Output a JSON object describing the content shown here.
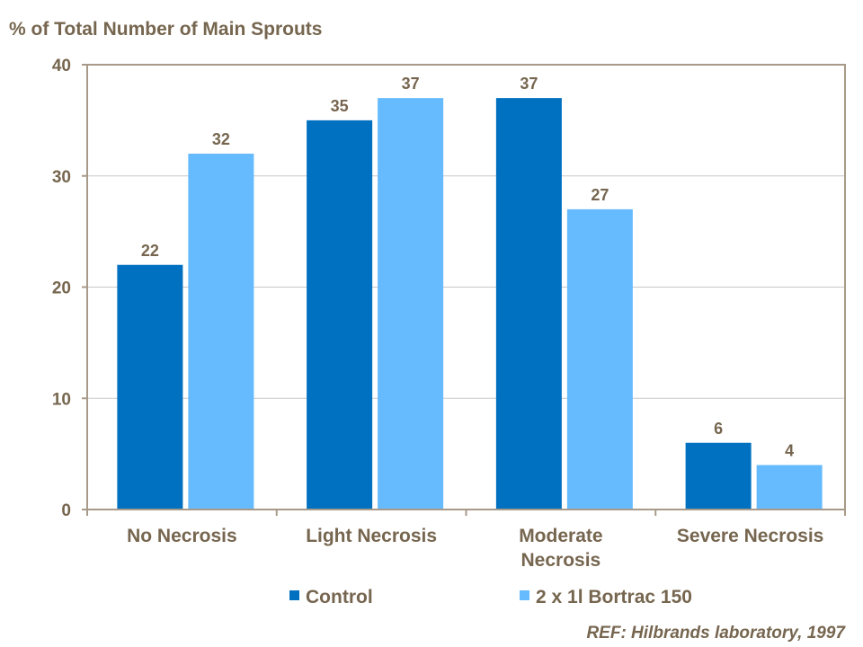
{
  "chart_data": {
    "type": "bar",
    "title": "% of Total Number of Main Sprouts",
    "xlabel": "",
    "ylabel": "% of Total Number of Main Sprouts",
    "ylim": [
      0,
      40
    ],
    "yticks": [
      0,
      10,
      20,
      30,
      40
    ],
    "grid": true,
    "categories": [
      [
        "No Necrosis"
      ],
      [
        "Light Necrosis"
      ],
      [
        "Moderate",
        "Necrosis"
      ],
      [
        "Severe Necrosis"
      ]
    ],
    "series": [
      {
        "name": "Control",
        "color": "#0070c0",
        "values": [
          22,
          35,
          37,
          6
        ]
      },
      {
        "name": "2 x 1l Bortrac 150",
        "color": "#66bbff",
        "values": [
          32,
          37,
          27,
          4
        ]
      }
    ],
    "legend_position": "bottom",
    "annotation": "REF: Hilbrands laboratory, 1997",
    "colors": {
      "text": "#76664f",
      "axis": "#a89a88",
      "grid": "#c8c8c8"
    }
  }
}
